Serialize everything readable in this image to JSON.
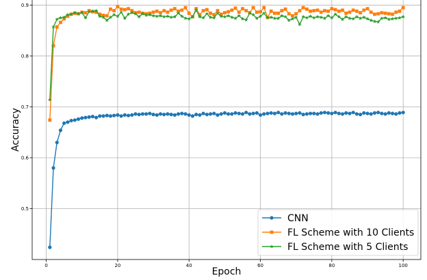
{
  "chart_data": {
    "type": "line",
    "title": "",
    "xlabel": "Epoch",
    "ylabel": "Accuracy",
    "xlim": [
      -3.95,
      104.95
    ],
    "ylim": [
      0.4,
      0.91
    ],
    "xticks": [
      0,
      20,
      40,
      60,
      80,
      100
    ],
    "yticks": [
      0.5,
      0.6,
      0.7,
      0.8,
      0.9
    ],
    "grid": true,
    "legend_position": "lower-right",
    "x": [
      1,
      2,
      3,
      4,
      5,
      6,
      7,
      8,
      9,
      10,
      11,
      12,
      13,
      14,
      15,
      16,
      17,
      18,
      19,
      20,
      21,
      22,
      23,
      24,
      25,
      26,
      27,
      28,
      29,
      30,
      31,
      32,
      33,
      34,
      35,
      36,
      37,
      38,
      39,
      40,
      41,
      42,
      43,
      44,
      45,
      46,
      47,
      48,
      49,
      50,
      51,
      52,
      53,
      54,
      55,
      56,
      57,
      58,
      59,
      60,
      61,
      62,
      63,
      64,
      65,
      66,
      67,
      68,
      69,
      70,
      71,
      72,
      73,
      74,
      75,
      76,
      77,
      78,
      79,
      80,
      81,
      82,
      83,
      84,
      85,
      86,
      87,
      88,
      89,
      90,
      91,
      92,
      93,
      94,
      95,
      96,
      97,
      98,
      99,
      100
    ],
    "series": [
      {
        "name": "CNN",
        "color": "#1f77b4",
        "marker": "circle",
        "values": [
          0.424,
          0.58,
          0.63,
          0.654,
          0.668,
          0.67,
          0.673,
          0.674,
          0.676,
          0.678,
          0.679,
          0.68,
          0.681,
          0.679,
          0.682,
          0.682,
          0.683,
          0.682,
          0.683,
          0.684,
          0.682,
          0.684,
          0.683,
          0.684,
          0.686,
          0.685,
          0.686,
          0.686,
          0.687,
          0.685,
          0.684,
          0.686,
          0.685,
          0.686,
          0.685,
          0.684,
          0.686,
          0.687,
          0.686,
          0.684,
          0.682,
          0.685,
          0.684,
          0.687,
          0.685,
          0.686,
          0.687,
          0.684,
          0.686,
          0.688,
          0.686,
          0.686,
          0.688,
          0.687,
          0.686,
          0.689,
          0.686,
          0.687,
          0.688,
          0.684,
          0.686,
          0.687,
          0.688,
          0.687,
          0.689,
          0.686,
          0.688,
          0.687,
          0.686,
          0.687,
          0.688,
          0.685,
          0.686,
          0.687,
          0.687,
          0.686,
          0.688,
          0.689,
          0.688,
          0.687,
          0.689,
          0.687,
          0.686,
          0.688,
          0.687,
          0.689,
          0.686,
          0.685,
          0.688,
          0.687,
          0.686,
          0.688,
          0.689,
          0.687,
          0.686,
          0.688,
          0.687,
          0.686,
          0.688,
          0.689
        ]
      },
      {
        "name": "FL Scheme with 10 Clients",
        "color": "#ff7f0e",
        "marker": "square",
        "values": [
          0.674,
          0.82,
          0.857,
          0.866,
          0.873,
          0.878,
          0.882,
          0.884,
          0.883,
          0.886,
          0.885,
          0.889,
          0.887,
          0.886,
          0.882,
          0.88,
          0.879,
          0.892,
          0.889,
          0.897,
          0.892,
          0.891,
          0.893,
          0.889,
          0.885,
          0.886,
          0.884,
          0.883,
          0.884,
          0.886,
          0.888,
          0.885,
          0.889,
          0.886,
          0.89,
          0.893,
          0.888,
          0.89,
          0.895,
          0.884,
          0.877,
          0.893,
          0.881,
          0.889,
          0.891,
          0.884,
          0.881,
          0.889,
          0.882,
          0.885,
          0.887,
          0.89,
          0.894,
          0.886,
          0.893,
          0.889,
          0.885,
          0.895,
          0.886,
          0.887,
          0.895,
          0.876,
          0.888,
          0.884,
          0.884,
          0.889,
          0.892,
          0.883,
          0.879,
          0.883,
          0.889,
          0.895,
          0.892,
          0.888,
          0.889,
          0.89,
          0.886,
          0.889,
          0.888,
          0.893,
          0.891,
          0.888,
          0.89,
          0.884,
          0.886,
          0.89,
          0.888,
          0.885,
          0.89,
          0.893,
          0.886,
          0.882,
          0.883,
          0.885,
          0.884,
          0.883,
          0.882,
          0.886,
          0.888,
          0.895
        ]
      },
      {
        "name": "FL Scheme with 5 Clients",
        "color": "#2ca02c",
        "marker": "star",
        "values": [
          0.714,
          0.857,
          0.872,
          0.875,
          0.876,
          0.881,
          0.882,
          0.885,
          0.883,
          0.885,
          0.875,
          0.887,
          0.888,
          0.889,
          0.878,
          0.876,
          0.87,
          0.876,
          0.881,
          0.878,
          0.886,
          0.874,
          0.882,
          0.885,
          0.883,
          0.877,
          0.883,
          0.88,
          0.881,
          0.879,
          0.878,
          0.879,
          0.877,
          0.878,
          0.876,
          0.877,
          0.884,
          0.878,
          0.874,
          0.873,
          0.877,
          0.89,
          0.877,
          0.875,
          0.883,
          0.876,
          0.875,
          0.884,
          0.878,
          0.877,
          0.879,
          0.876,
          0.874,
          0.879,
          0.873,
          0.871,
          0.884,
          0.881,
          0.874,
          0.878,
          0.884,
          0.875,
          0.876,
          0.874,
          0.874,
          0.879,
          0.877,
          0.87,
          0.873,
          0.876,
          0.862,
          0.877,
          0.875,
          0.878,
          0.875,
          0.877,
          0.876,
          0.874,
          0.879,
          0.875,
          0.882,
          0.877,
          0.872,
          0.877,
          0.874,
          0.873,
          0.877,
          0.874,
          0.876,
          0.873,
          0.87,
          0.868,
          0.867,
          0.874,
          0.875,
          0.872,
          0.873,
          0.874,
          0.875,
          0.877
        ]
      }
    ]
  }
}
